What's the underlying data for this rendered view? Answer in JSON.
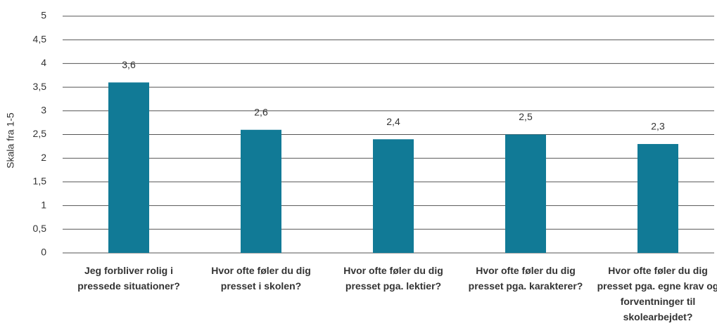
{
  "chart_data": {
    "type": "bar",
    "y_label": "Skala fra 1-5",
    "categories": [
      "Jeg forbliver rolig i pressede situationer?",
      "Hvor ofte føler du dig presset i skolen?",
      "Hvor ofte føler du dig presset pga. lektier?",
      "Hvor ofte føler du dig presset pga. karakterer?",
      "Hvor ofte føler du dig presset pga. egne krav og forventninger til skolearbejdet?"
    ],
    "values": [
      3.6,
      2.6,
      2.4,
      2.5,
      2.3
    ],
    "value_labels": [
      "3,6",
      "2,6",
      "2,4",
      "2,5",
      "2,3"
    ],
    "color": "#117a96",
    "ylim": [
      0,
      5
    ],
    "yticks": [
      0,
      {
        "value": 0.5,
        "label": "0,5"
      },
      1,
      {
        "value": 1.5,
        "label": "1,5"
      },
      2,
      {
        "value": 2.5,
        "label": "2,5"
      },
      3,
      {
        "value": 3.5,
        "label": "3,5"
      },
      4,
      {
        "value": 4.5,
        "label": "4,5"
      },
      5
    ],
    "grid": true
  }
}
